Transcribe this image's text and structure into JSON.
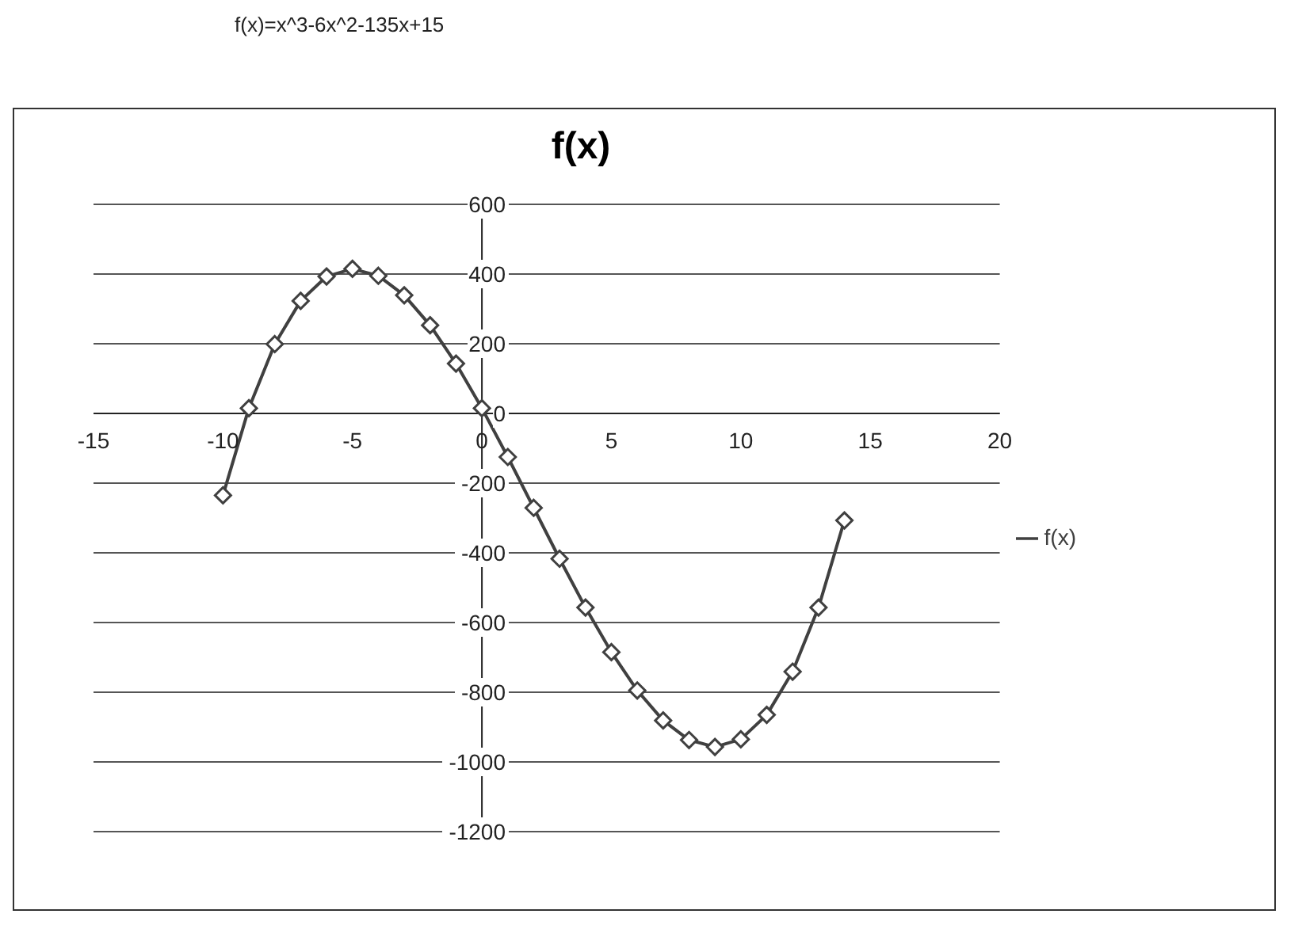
{
  "chart_data": {
    "type": "line",
    "title": "f(x)",
    "annotations": [
      "f(x)=x^3-6x^2-135x+15"
    ],
    "x": [
      -10,
      -9,
      -8,
      -7,
      -6,
      -5,
      -4,
      -3,
      -2,
      -1,
      0,
      1,
      2,
      3,
      4,
      5,
      6,
      7,
      8,
      9,
      10,
      11,
      12,
      13,
      14
    ],
    "series": [
      {
        "name": "f(x)",
        "color": "#404040",
        "values": [
          -235,
          15,
          199,
          323,
          393,
          415,
          395,
          339,
          253,
          143,
          15,
          -125,
          -271,
          -417,
          -557,
          -685,
          -795,
          -881,
          -937,
          -957,
          -935,
          -865,
          -741,
          -557,
          -307
        ]
      }
    ],
    "xlim": [
      -15,
      20
    ],
    "xticks": [
      -15,
      -10,
      -5,
      0,
      5,
      10,
      15,
      20
    ],
    "ylim": [
      -1200,
      600
    ],
    "yticks": [
      -1200,
      -1000,
      -800,
      -600,
      -400,
      -200,
      0,
      200,
      400,
      600
    ],
    "grid": "y",
    "legend": "right",
    "marker": "diamond",
    "line_style": "solid"
  }
}
